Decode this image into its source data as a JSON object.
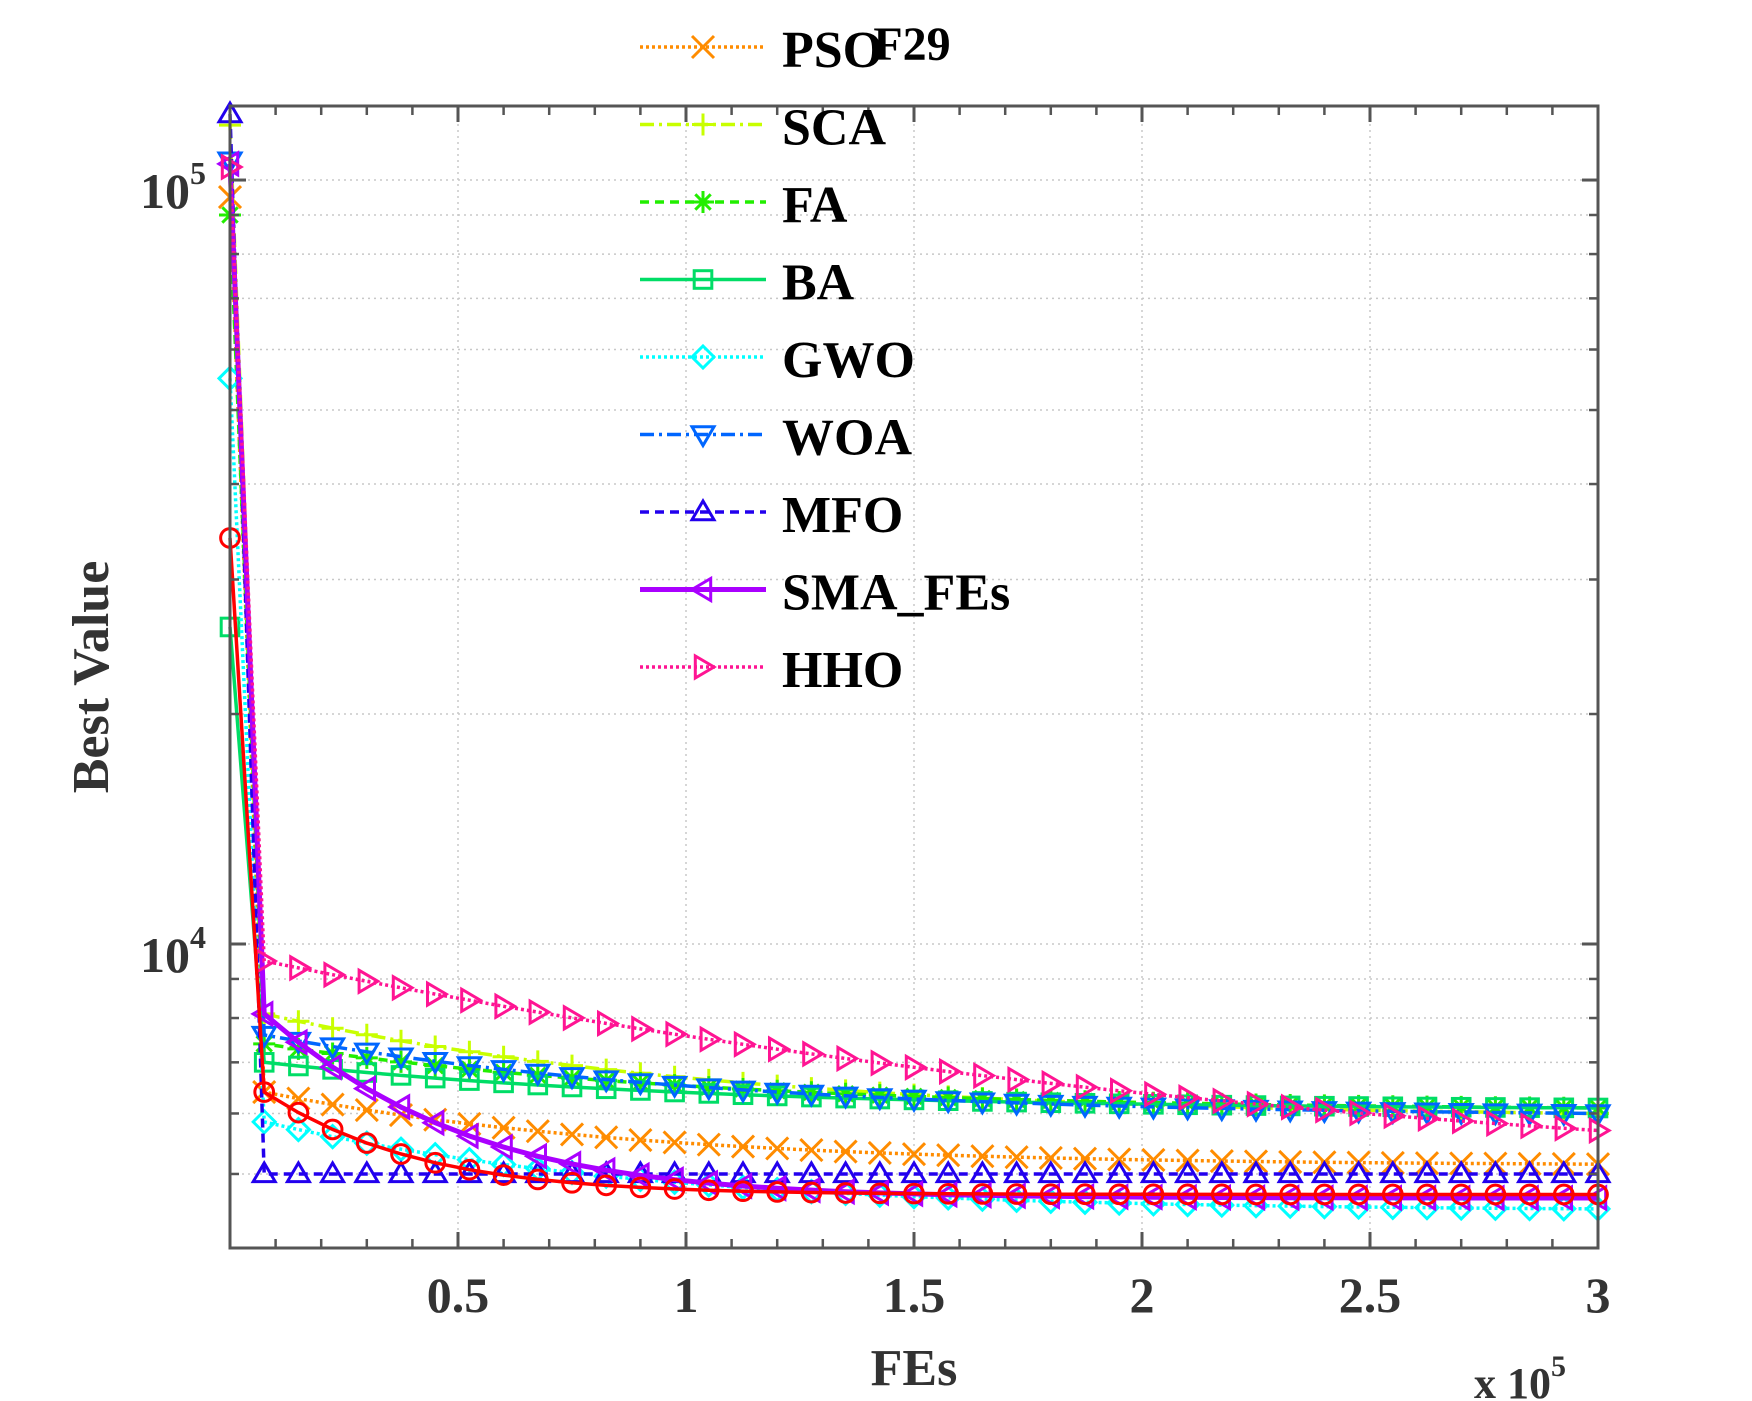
{
  "chart_data": {
    "type": "line",
    "title": "F29",
    "xlabel": "FEs",
    "ylabel": "Best Value",
    "x_multiplier_label": "x 10",
    "x_multiplier_exp": "5",
    "xlim": [
      0,
      300000
    ],
    "ylim": [
      4000,
      125000
    ],
    "yscale": "log",
    "grid": true,
    "legend_position": "top-center",
    "x_ticks": [
      {
        "value": 50000,
        "label": "0.5"
      },
      {
        "value": 100000,
        "label": "1"
      },
      {
        "value": 150000,
        "label": "1.5"
      },
      {
        "value": 200000,
        "label": "2"
      },
      {
        "value": 250000,
        "label": "2.5"
      },
      {
        "value": 300000,
        "label": "3"
      }
    ],
    "y_ticks": [
      {
        "value": 10000,
        "base": "10",
        "exp": "4"
      },
      {
        "value": 100000,
        "base": "10",
        "exp": "5"
      }
    ],
    "series": [
      {
        "name": "PSO",
        "color": "#ff8c00",
        "dash": "3,3",
        "marker": "x",
        "y0": 95000,
        "y1": 6400,
        "yend": 5150,
        "tau": 0.25
      },
      {
        "name": "SCA",
        "color": "#c8ff00",
        "dash": "14,5,3,5",
        "marker": "plus",
        "y0": 118000,
        "y1": 8100,
        "yend": 6000,
        "tau": 0.3
      },
      {
        "name": "FA",
        "color": "#22ee00",
        "dash": "9,6",
        "marker": "star",
        "y0": 90000,
        "y1": 7400,
        "yend": 6100,
        "tau": 0.3
      },
      {
        "name": "BA",
        "color": "#00dd66",
        "dash": "",
        "marker": "square",
        "y0": 26000,
        "y1": 7000,
        "yend": 6100,
        "tau": 0.3
      },
      {
        "name": "GWO",
        "color": "#00ffff",
        "dash": "3,3",
        "marker": "diamond",
        "y0": 55000,
        "y1": 5850,
        "yend": 4500,
        "tau": 0.25
      },
      {
        "name": "WOA",
        "color": "#0066ff",
        "dash": "14,5,3,5",
        "marker": "tri-down",
        "y0": 106000,
        "y1": 7600,
        "yend": 6000,
        "tau": 0.3
      },
      {
        "name": "MFO",
        "color": "#2200ee",
        "dash": "9,6",
        "marker": "tri-up",
        "y0": 122000,
        "y1": 5000,
        "yend": 5000,
        "tau": 0.3
      },
      {
        "name": "SMA_FEs",
        "color": "#aa00ff",
        "dash": "",
        "marker": "tri-left",
        "y0": 105000,
        "y1": 8100,
        "yend": 4650,
        "tau": 0.12
      },
      {
        "name": "HHO",
        "color": "#ff1493",
        "dash": "3,3",
        "marker": "tri-right",
        "y0": 104000,
        "y1": 9500,
        "yend": 5700,
        "tau": 0.6
      },
      {
        "color": "#ff0000",
        "dash": "",
        "marker": "circle",
        "y0": 34000,
        "y1": 6400,
        "yend": 4700,
        "tau": 0.1
      }
    ]
  }
}
